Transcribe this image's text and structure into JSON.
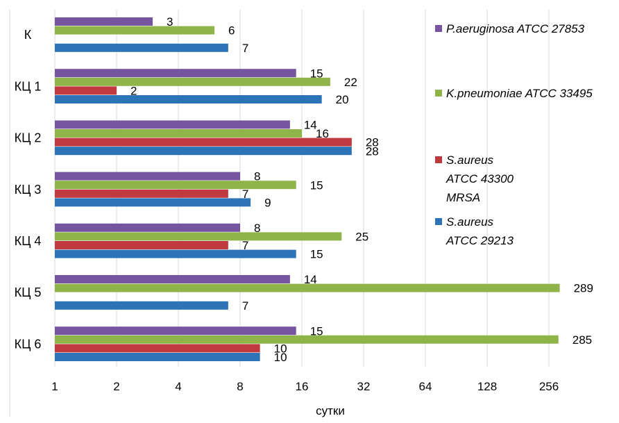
{
  "chart_data": {
    "type": "bar",
    "orientation": "horizontal",
    "title": "",
    "xlabel": "сутки",
    "ylabel": "",
    "xscale": "log2",
    "xlim": [
      1,
      300
    ],
    "xticks": [
      1,
      2,
      4,
      8,
      16,
      32,
      64,
      128,
      256
    ],
    "xtick_labels": [
      "1",
      "2",
      "4",
      "8",
      "16",
      "32",
      "64",
      "128",
      "256"
    ],
    "grid": true,
    "legend_position": "right",
    "categories": [
      "К",
      "КЦ 1",
      "КЦ 2",
      "КЦ 3",
      "КЦ 4",
      "КЦ 5",
      "КЦ 6"
    ],
    "series": [
      {
        "name": "P.aeruginosa  ATCC 27853",
        "legend_lines": [
          "P.aeruginosa  ATCC 27853"
        ],
        "color": "#7655a0",
        "values": [
          3,
          15,
          14,
          8,
          8,
          14,
          15
        ]
      },
      {
        "name": "K.pneumoniae ATCC 33495",
        "legend_lines": [
          "K.pneumoniae ATCC 33495"
        ],
        "color": "#8fb54a",
        "values": [
          6,
          22,
          16,
          15,
          25,
          289,
          285
        ]
      },
      {
        "name": "S.aureus ATCC 43300 MRSA",
        "legend_lines": [
          "S.aureus",
          "ATCC 43300",
          "MRSA"
        ],
        "color": "#c0393e",
        "values": [
          null,
          2,
          28,
          7,
          7,
          null,
          10
        ]
      },
      {
        "name": "S.aureus ATCC 29213",
        "legend_lines": [
          "S.aureus",
          "ATCC 29213"
        ],
        "color": "#2c73b8",
        "values": [
          7,
          20,
          28,
          9,
          15,
          7,
          10
        ]
      }
    ]
  }
}
